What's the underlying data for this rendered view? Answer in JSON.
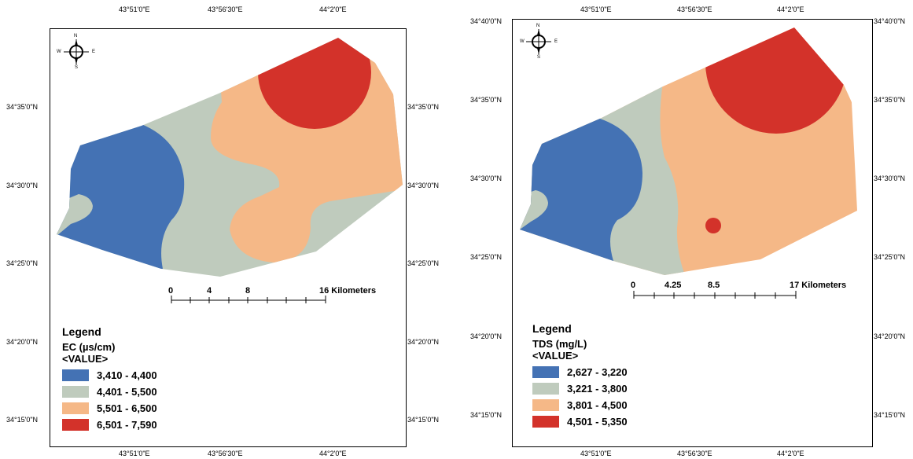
{
  "maps": [
    {
      "top_ticks": [
        "43°51'0\"E",
        "43°56'30\"E",
        "44°2'0\"E"
      ],
      "bottom_ticks": [
        "43°51'0\"E",
        "43°56'30\"E",
        "44°2'0\"E"
      ],
      "left_ticks": [
        "34°35'0\"N",
        "34°30'0\"N",
        "34°25'0\"N",
        "34°20'0\"N",
        "34°15'0\"N"
      ],
      "right_ticks": [
        "34°35'0\"N",
        "34°30'0\"N",
        "34°25'0\"N",
        "34°20'0\"N",
        "34°15'0\"N"
      ],
      "scale": {
        "labels": [
          "0",
          "4",
          "8",
          "16 Kilometers"
        ]
      },
      "north_arrow": {
        "n": "N",
        "s": "S",
        "e": "E",
        "w": "W"
      },
      "legend": {
        "title": "Legend",
        "field": "EC (µs/cm)",
        "value_label": "<VALUE>",
        "classes": [
          {
            "label": "3,410 - 4,400",
            "color": "#4472b4"
          },
          {
            "label": "4,401 - 5,500",
            "color": "#bfcbbd"
          },
          {
            "label": "5,501 - 6,500",
            "color": "#f5b887"
          },
          {
            "label": "6,501 - 7,590",
            "color": "#d3322a"
          }
        ]
      }
    },
    {
      "top_ticks": [
        "43°51'0\"E",
        "43°56'30\"E",
        "44°2'0\"E"
      ],
      "bottom_ticks": [
        "43°51'0\"E",
        "43°56'30\"E",
        "44°2'0\"E"
      ],
      "left_ticks": [
        "34°40'0\"N",
        "34°35'0\"N",
        "34°30'0\"N",
        "34°25'0\"N",
        "34°20'0\"N",
        "34°15'0\"N"
      ],
      "right_ticks": [
        "34°40'0\"N",
        "34°35'0\"N",
        "34°30'0\"N",
        "34°25'0\"N",
        "34°20'0\"N",
        "34°15'0\"N"
      ],
      "scale": {
        "labels": [
          "0",
          "4.25",
          "8.5",
          "17 Kilometers"
        ]
      },
      "north_arrow": {
        "n": "N",
        "s": "S",
        "e": "E",
        "w": "W"
      },
      "legend": {
        "title": "Legend",
        "field": "TDS (mg/L)",
        "value_label": "<VALUE>",
        "classes": [
          {
            "label": "2,627 - 3,220",
            "color": "#4472b4"
          },
          {
            "label": "3,221 - 3,800",
            "color": "#bfcbbd"
          },
          {
            "label": "3,801 - 4,500",
            "color": "#f5b887"
          },
          {
            "label": "4,501 - 5,350",
            "color": "#d3322a"
          }
        ]
      }
    }
  ]
}
